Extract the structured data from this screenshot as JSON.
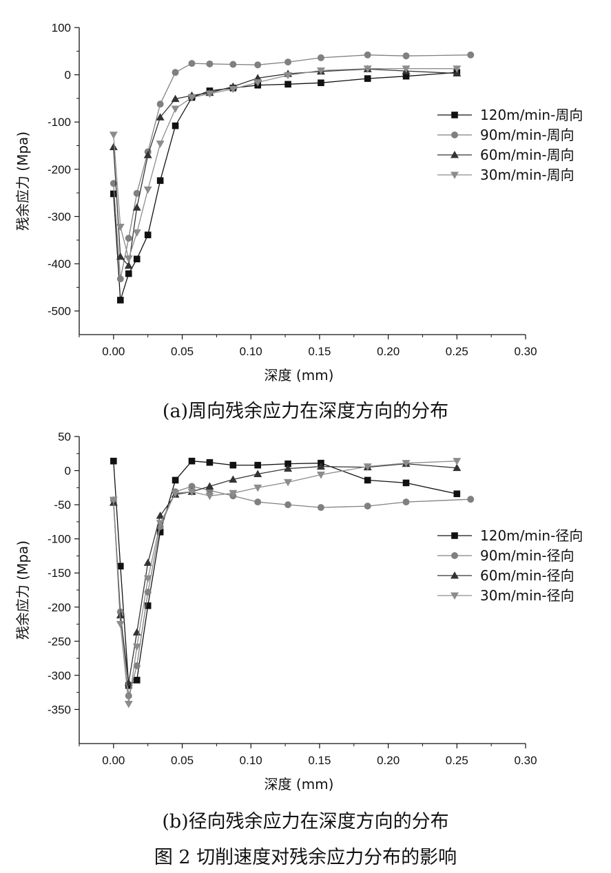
{
  "chart_data": [
    {
      "type": "line",
      "caption": "(a)周向残余应力在深度方向的分布",
      "xlabel": "深度 (mm)",
      "ylabel": "残余应力 (Mpa)",
      "xlim": [
        -0.025,
        0.3
      ],
      "ylim": [
        -550,
        100
      ],
      "xticks": [
        0.0,
        0.05,
        0.1,
        0.15,
        0.2,
        0.25,
        0.3
      ],
      "xtick_labels": [
        "0.00",
        "0.05",
        "0.10",
        "0.15",
        "0.20",
        "0.25",
        "0.30"
      ],
      "yticks": [
        -500,
        -400,
        -300,
        -200,
        -100,
        0,
        100
      ],
      "ytick_labels": [
        "-500",
        "-400",
        "-300",
        "-200",
        "-100",
        "0",
        "100"
      ],
      "grid": false,
      "legend_position": "right",
      "series": [
        {
          "name": "120m/min-周向",
          "marker": "square",
          "color": "#111111",
          "x": [
            0.0,
            0.005,
            0.011,
            0.017,
            0.025,
            0.034,
            0.045,
            0.057,
            0.07,
            0.087,
            0.105,
            0.127,
            0.151,
            0.185,
            0.213,
            0.25
          ],
          "y": [
            -252,
            -477,
            -421,
            -390,
            -339,
            -224,
            -108,
            -48,
            -34,
            -28,
            -22,
            -20,
            -17,
            -8,
            -3,
            5
          ]
        },
        {
          "name": "90m/min-周向",
          "marker": "circle",
          "color": "#808080",
          "x": [
            0.0,
            0.005,
            0.011,
            0.017,
            0.025,
            0.034,
            0.045,
            0.057,
            0.07,
            0.087,
            0.105,
            0.127,
            0.151,
            0.185,
            0.213,
            0.26
          ],
          "y": [
            -230,
            -432,
            -346,
            -251,
            -163,
            -62,
            5,
            24,
            23,
            22,
            21,
            27,
            36,
            42,
            40,
            42
          ]
        },
        {
          "name": "60m/min-周向",
          "marker": "triangle-up",
          "color": "#333333",
          "x": [
            0.0,
            0.005,
            0.011,
            0.017,
            0.025,
            0.034,
            0.045,
            0.057,
            0.07,
            0.087,
            0.105,
            0.127,
            0.151,
            0.185,
            0.213,
            0.25
          ],
          "y": [
            -153,
            -385,
            -404,
            -281,
            -170,
            -90,
            -51,
            -44,
            -38,
            -25,
            -7,
            2,
            7,
            12,
            8,
            3
          ]
        },
        {
          "name": "30m/min-周向",
          "marker": "triangle-down",
          "color": "#8c8c8c",
          "x": [
            0.0,
            0.005,
            0.011,
            0.017,
            0.025,
            0.034,
            0.045,
            0.057,
            0.07,
            0.087,
            0.105,
            0.127,
            0.151,
            0.185,
            0.213,
            0.25
          ],
          "y": [
            -127,
            -322,
            -389,
            -334,
            -243,
            -146,
            -72,
            -48,
            -40,
            -30,
            -16,
            -1,
            9,
            13,
            13,
            13
          ]
        }
      ]
    },
    {
      "type": "line",
      "caption": "(b)径向残余应力在深度方向的分布",
      "xlabel": "深度 (mm)",
      "ylabel": "残余应力 (Mpa)",
      "xlim": [
        -0.025,
        0.3
      ],
      "ylim": [
        -400,
        50
      ],
      "xticks": [
        0.0,
        0.05,
        0.1,
        0.15,
        0.2,
        0.25,
        0.3
      ],
      "xtick_labels": [
        "0.00",
        "0.05",
        "0.10",
        "0.15",
        "0.20",
        "0.25",
        "0.30"
      ],
      "yticks": [
        -350,
        -300,
        -250,
        -200,
        -150,
        -100,
        -50,
        0,
        50
      ],
      "ytick_labels": [
        "-350",
        "-300",
        "-250",
        "-200",
        "-150",
        "-100",
        "-50",
        "0",
        "50"
      ],
      "grid": false,
      "legend_position": "right",
      "series": [
        {
          "name": "120m/min-径向",
          "marker": "square",
          "color": "#111111",
          "x": [
            0.0,
            0.005,
            0.011,
            0.017,
            0.025,
            0.034,
            0.045,
            0.057,
            0.07,
            0.087,
            0.105,
            0.127,
            0.151,
            0.185,
            0.213,
            0.25
          ],
          "y": [
            14,
            -140,
            -315,
            -307,
            -198,
            -90,
            -14,
            14,
            12,
            8,
            8,
            10,
            11,
            -14,
            -18,
            -34
          ]
        },
        {
          "name": "90m/min-径向",
          "marker": "circle",
          "color": "#808080",
          "x": [
            0.0,
            0.005,
            0.011,
            0.017,
            0.025,
            0.034,
            0.045,
            0.057,
            0.07,
            0.087,
            0.105,
            0.127,
            0.151,
            0.185,
            0.213,
            0.26
          ],
          "y": [
            -43,
            -207,
            -330,
            -286,
            -178,
            -82,
            -31,
            -23,
            -29,
            -37,
            -46,
            -50,
            -54,
            -52,
            -46,
            -42
          ]
        },
        {
          "name": "60m/min-径向",
          "marker": "triangle-up",
          "color": "#333333",
          "x": [
            0.0,
            0.005,
            0.011,
            0.017,
            0.025,
            0.034,
            0.045,
            0.057,
            0.07,
            0.087,
            0.105,
            0.127,
            0.151,
            0.185,
            0.213,
            0.25
          ],
          "y": [
            -47,
            -212,
            -311,
            -237,
            -135,
            -66,
            -35,
            -31,
            -23,
            -13,
            -5,
            3,
            6,
            5,
            10,
            4
          ]
        },
        {
          "name": "30m/min-径向",
          "marker": "triangle-down",
          "color": "#8c8c8c",
          "x": [
            0.0,
            0.005,
            0.011,
            0.017,
            0.025,
            0.034,
            0.045,
            0.057,
            0.07,
            0.087,
            0.105,
            0.127,
            0.151,
            0.185,
            0.213,
            0.25
          ],
          "y": [
            -43,
            -225,
            -342,
            -258,
            -158,
            -77,
            -33,
            -31,
            -37,
            -33,
            -25,
            -17,
            -6,
            6,
            11,
            14
          ]
        }
      ]
    }
  ],
  "figure_caption": "图 2 切削速度对残余应力分布的影响"
}
